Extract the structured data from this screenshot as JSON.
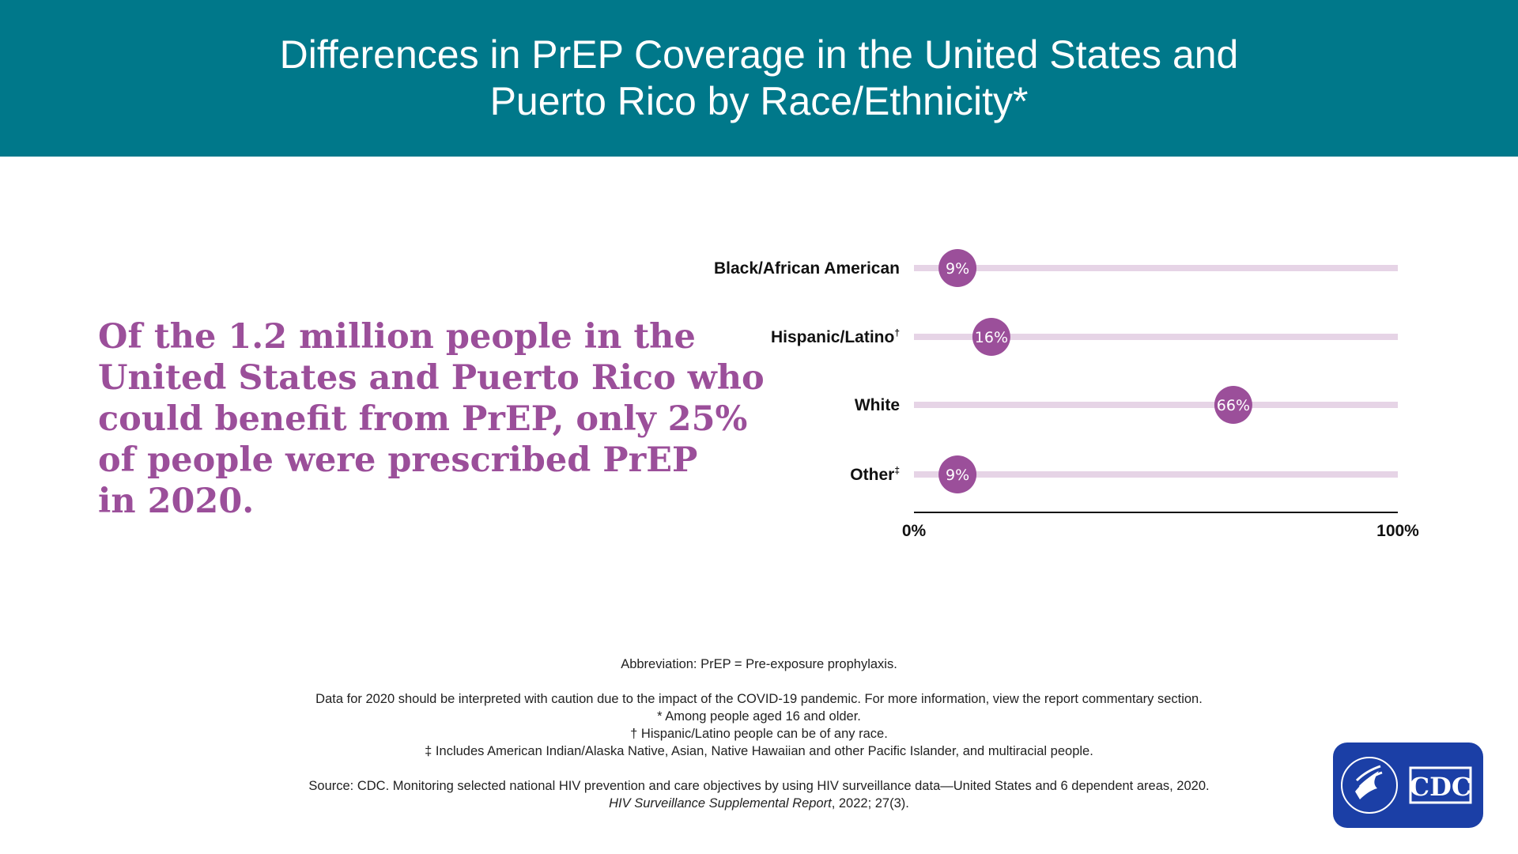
{
  "header": {
    "title_line1": "Differences in PrEP Coverage in the United States and",
    "title_line2": "Puerto Rico by Race/Ethnicity*"
  },
  "headline": {
    "line1": "Of the 1.2 million people in the",
    "line2": "United States and Puerto Rico who",
    "line3": "could benefit from PrEP, only 25%",
    "line4": "of people were prescribed PrEP",
    "line5": "in 2020."
  },
  "chart_data": {
    "type": "dot",
    "categories": [
      "Black/African American",
      "Hispanic/Latino",
      "White",
      "Other"
    ],
    "category_marks": [
      "",
      "†",
      "",
      "‡"
    ],
    "values": [
      9,
      16,
      66,
      9
    ],
    "value_labels": [
      "9%",
      "16%",
      "66%",
      "9%"
    ],
    "xlim": [
      0,
      100
    ],
    "x_tick_labels": [
      "0%",
      "100%"
    ],
    "colors": {
      "dot": "#9b4f9a",
      "track": "#e6d4e6",
      "axis": "#111111"
    }
  },
  "footnotes": {
    "abbreviation": "Abbreviation: PrEP = Pre-exposure prophylaxis.",
    "caution": "Data for 2020 should be interpreted with caution due to the impact of the COVID-19 pandemic. For more information, view the report commentary section.",
    "note_star": "* Among people aged 16 and older.",
    "note_dagger": "† Hispanic/Latino people can be of any race.",
    "note_ddagger": "‡ Includes American Indian/Alaska Native, Asian, Native Hawaiian and other Pacific Islander, and multiracial people.",
    "source": "Source: CDC. Monitoring selected national HIV prevention and care objectives by using HIV surveillance data—United States and 6 dependent areas, 2020.",
    "source_journal": "HIV Surveillance Supplemental Report",
    "source_citation": ", 2022; 27(3)."
  },
  "logo": {
    "text": "CDC",
    "icon": "hhs-eagle-icon"
  },
  "colors": {
    "header_bg": "#00788a",
    "accent": "#9b4f9a",
    "logo_bg": "#1b3fa6"
  }
}
